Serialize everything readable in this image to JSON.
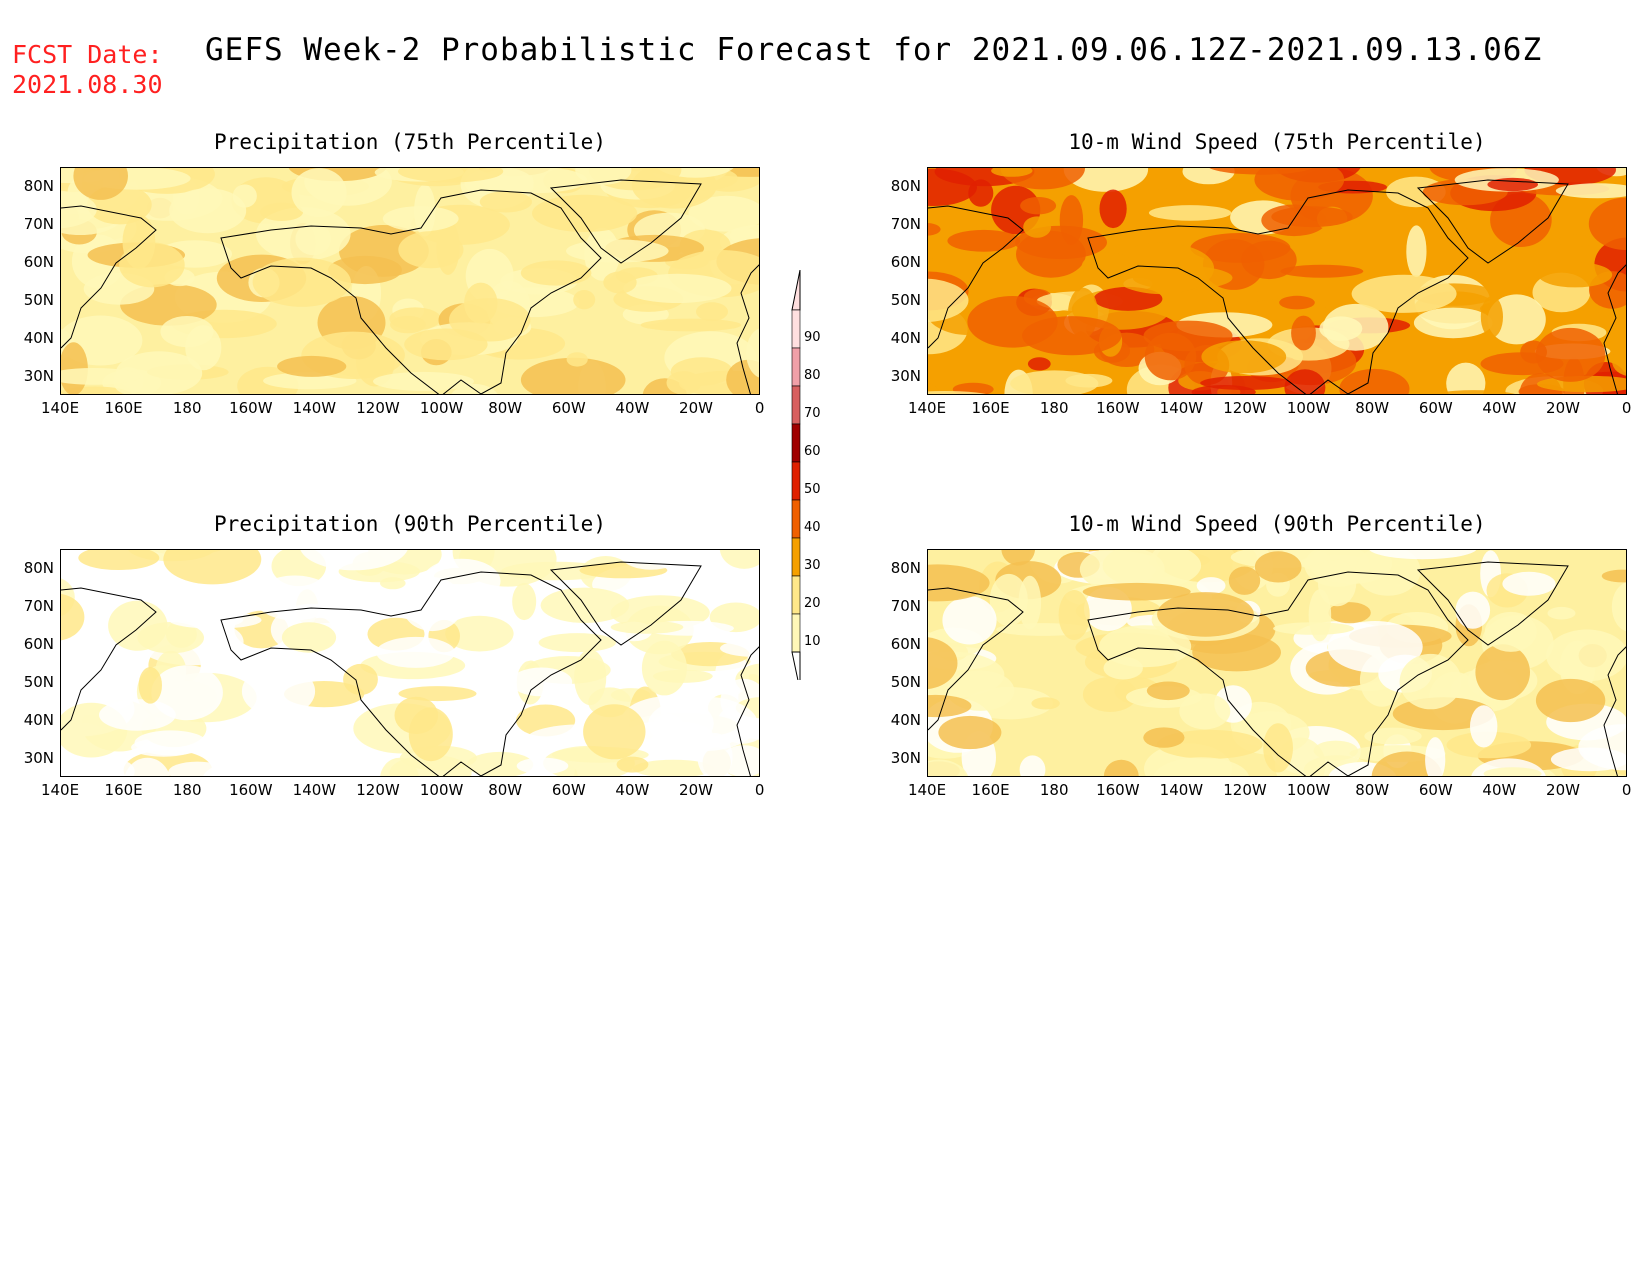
{
  "fcst_date": {
    "label": "FCST Date:",
    "value": "2021.08.30"
  },
  "title": "GEFS Week-2 Probabilistic Forecast for 2021.09.06.12Z-2021.09.13.06Z",
  "lat_labels": [
    "80N",
    "70N",
    "60N",
    "50N",
    "40N",
    "30N"
  ],
  "lon_labels": [
    "140E",
    "160E",
    "180",
    "160W",
    "140W",
    "120W",
    "100W",
    "80W",
    "60W",
    "40W",
    "20W",
    "0"
  ],
  "panels": [
    {
      "title": "Precipitation (75th Percentile)",
      "intensity": "moderate",
      "base_color": "#fef0a0"
    },
    {
      "title": "10-m Wind Speed (75th Percentile)",
      "intensity": "high",
      "base_color": "#f5a000"
    },
    {
      "title": "Precipitation (90th Percentile)",
      "intensity": "low",
      "base_color": "#ffffff"
    },
    {
      "title": "10-m Wind Speed (90th Percentile)",
      "intensity": "lowmod",
      "base_color": "#fef0a0"
    }
  ],
  "legend": {
    "levels": [
      "10",
      "20",
      "30",
      "40",
      "50",
      "60",
      "70",
      "80",
      "90"
    ],
    "colors": [
      "#fff8b8",
      "#ffe88a",
      "#f5a000",
      "#f06000",
      "#e02000",
      "#a00000",
      "#d86060",
      "#f0a0a8",
      "#ffe0e0"
    ]
  }
}
